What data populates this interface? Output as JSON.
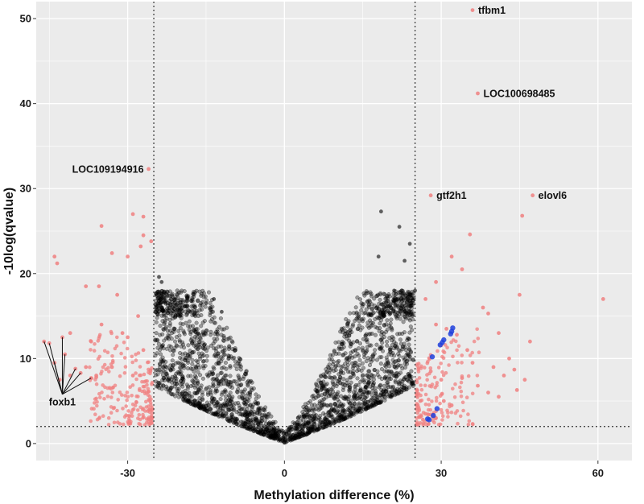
{
  "chart_data": {
    "type": "scatter",
    "title": "",
    "xlabel": "Methylation difference (%)",
    "ylabel": "-10log(qvalue)",
    "xlim": [
      -47.5,
      66.5
    ],
    "ylim": [
      -2,
      52
    ],
    "x_ticks": [
      -30,
      0,
      30,
      60
    ],
    "y_ticks": [
      0,
      10,
      20,
      30,
      40,
      50
    ],
    "grid": true,
    "legend": "none",
    "thresholds": {
      "x": [
        -25,
        25
      ],
      "y": [
        2
      ]
    },
    "colors": {
      "panel": "#ebebeb",
      "grid": "#ffffff",
      "not_significant": "#000000",
      "significant": "#f08080",
      "highlighted": "#1f3fdc",
      "threshold_line": "#333333"
    },
    "series": [
      {
        "color": "#f08080",
        "points": [
          [
            -26,
            32.3
          ],
          [
            -29,
            27
          ],
          [
            -27,
            26.7
          ],
          [
            -35,
            25.6
          ],
          [
            -27,
            24.5
          ],
          [
            -25.5,
            23.8
          ],
          [
            -27.5,
            23.2
          ],
          [
            -33,
            22.4
          ],
          [
            -44,
            22
          ],
          [
            -30,
            22
          ],
          [
            -43.5,
            21.2
          ],
          [
            -35.5,
            18.5
          ],
          [
            -38,
            18.5
          ],
          [
            -32,
            17.5
          ],
          [
            -28,
            15
          ],
          [
            -35,
            14
          ],
          [
            -31,
            13
          ],
          [
            -41,
            13
          ],
          [
            -30,
            12.5
          ],
          [
            -37,
            12
          ],
          [
            -46,
            12
          ],
          [
            -45,
            11.8
          ],
          [
            -27,
            11
          ],
          [
            -42.5,
            12.5
          ],
          [
            -42,
            10.5
          ],
          [
            -38,
            9
          ],
          [
            -40,
            8.8
          ],
          [
            -33,
            9
          ],
          [
            -29,
            8
          ],
          [
            -36,
            8
          ],
          [
            -44,
            9.5
          ],
          [
            -39,
            8.3
          ],
          [
            -41,
            8
          ],
          [
            -37,
            7.7
          ],
          [
            -43,
            7.5
          ],
          [
            -36,
            7.8
          ],
          [
            36,
            51
          ],
          [
            37,
            41.2
          ],
          [
            28,
            29.2
          ],
          [
            47.5,
            29.2
          ],
          [
            45.5,
            26.8
          ],
          [
            35.5,
            24.6
          ],
          [
            32,
            22
          ],
          [
            34,
            20.5
          ],
          [
            29,
            19
          ],
          [
            27,
            17
          ],
          [
            38,
            16
          ],
          [
            45,
            17.5
          ],
          [
            39,
            15.3
          ],
          [
            61,
            17
          ],
          [
            41,
            13
          ],
          [
            47,
            12
          ],
          [
            43,
            10
          ],
          [
            44,
            8.7
          ],
          [
            46,
            7.5
          ],
          [
            44.5,
            6.3
          ],
          [
            29,
            14
          ],
          [
            31,
            13.5
          ],
          [
            33,
            12.8
          ],
          [
            35,
            11
          ],
          [
            36,
            9.5
          ],
          [
            40,
            9
          ],
          [
            42,
            8
          ],
          [
            30,
            7.5
          ],
          [
            28,
            8.5
          ],
          [
            34,
            7.7
          ],
          [
            37,
            6.8
          ],
          [
            39,
            6
          ],
          [
            41,
            5.5
          ],
          [
            30.5,
            5
          ],
          [
            32,
            4.5
          ],
          [
            27,
            3.5
          ],
          [
            29,
            3
          ],
          [
            26,
            5
          ],
          [
            26.5,
            2.8
          ]
        ]
      },
      {
        "color": "#1f3fdc",
        "points": [
          [
            32.2,
            13.6
          ],
          [
            32,
            13.2
          ],
          [
            31.8,
            12.9
          ],
          [
            30.5,
            12.2
          ],
          [
            30.2,
            11.9
          ],
          [
            29.8,
            11.6
          ],
          [
            28.3,
            10.2
          ],
          [
            29.2,
            4.1
          ],
          [
            28.5,
            3.3
          ],
          [
            27.7,
            2.8
          ],
          [
            27.4,
            2.9
          ]
        ]
      },
      {
        "color": "#000000",
        "points": [
          [
            18.5,
            27.3
          ],
          [
            22,
            25.5
          ],
          [
            24,
            23.5
          ],
          [
            18,
            22
          ],
          [
            23,
            21.5
          ],
          [
            21,
            18
          ],
          [
            25,
            18
          ],
          [
            -24,
            19.6
          ],
          [
            -23.5,
            19
          ],
          [
            -21,
            17
          ],
          [
            -13.5,
            17
          ],
          [
            -15,
            16.5
          ],
          [
            -12,
            15.5
          ],
          [
            -18,
            15.5
          ],
          [
            -20,
            15
          ]
        ]
      }
    ],
    "annotations": [
      {
        "text": "tfbm1",
        "x": 36,
        "y": 51
      },
      {
        "text": "LOC100698485",
        "x": 37,
        "y": 41.2
      },
      {
        "text": "LOC109194916",
        "x": -26,
        "y": 32.3
      },
      {
        "text": "gtf2h1",
        "x": 28,
        "y": 29.2
      },
      {
        "text": "elovl6",
        "x": 47.5,
        "y": 29.2
      },
      {
        "text": "foxb1",
        "x": -42.5,
        "y": 5.8
      }
    ]
  }
}
